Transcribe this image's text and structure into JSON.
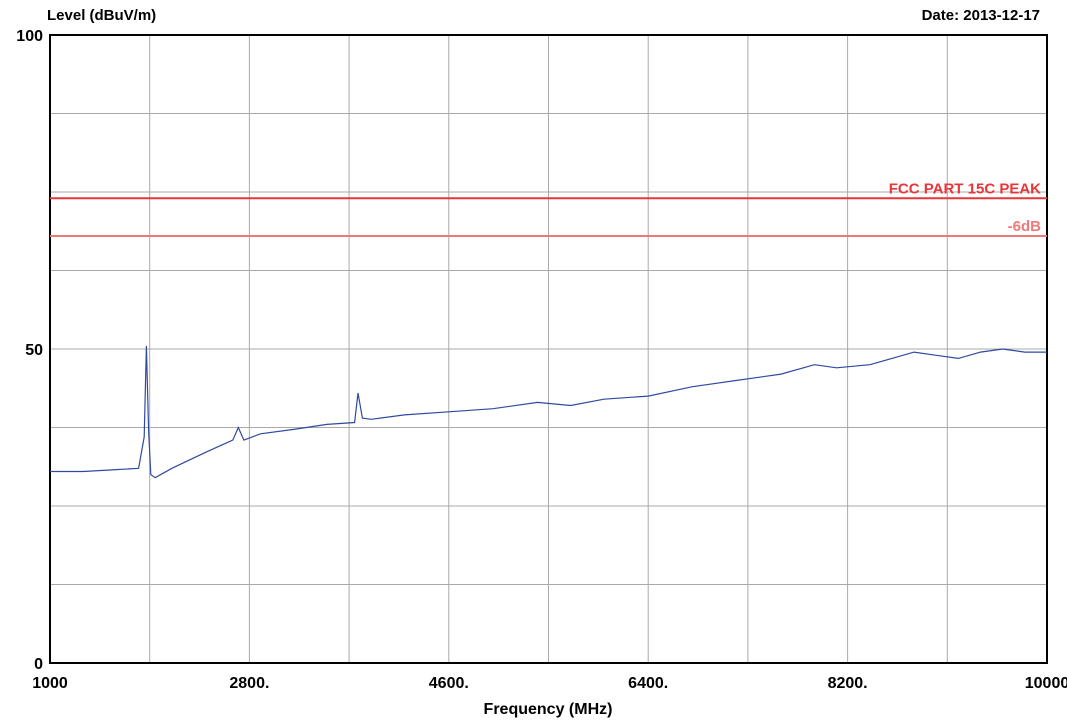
{
  "header": {
    "ylabel": "Level (dBuV/m)",
    "date": "Date: 2013-12-17"
  },
  "colors": {
    "limit_line": "#e8373a",
    "margin_line": "#ee7777",
    "margin_text": "#f07a7a",
    "trace": "#2f4aa0",
    "grid": "#a9a9a9"
  },
  "chart_data": {
    "type": "line",
    "xlabel": "Frequency (MHz)",
    "ylabel": "Level (dBuV/m)",
    "xlim": [
      1000,
      10000
    ],
    "ylim": [
      0,
      100
    ],
    "x_ticks": [
      1000,
      2800,
      4600,
      6400,
      8200,
      10000
    ],
    "x_tick_labels": [
      "1000",
      "2800.",
      "4600.",
      "6400.",
      "8200.",
      "10000"
    ],
    "y_tick_labels": [
      "0",
      "50",
      "100"
    ],
    "y_ticks": [
      0,
      50,
      100
    ],
    "grid": true,
    "limits": [
      {
        "name": "FCC PART 15C  PEAK",
        "value": 74
      },
      {
        "name": "-6dB",
        "value": 68
      }
    ],
    "series": [
      {
        "name": "",
        "x": [
          1000,
          1300,
          1600,
          1800,
          1850,
          1870,
          1890,
          1910,
          1950,
          2100,
          2400,
          2650,
          2700,
          2750,
          2900,
          3200,
          3500,
          3750,
          3780,
          3820,
          3900,
          4200,
          4600,
          5000,
          5400,
          5700,
          6000,
          6400,
          6800,
          7200,
          7600,
          7900,
          8100,
          8400,
          8600,
          8800,
          9000,
          9200,
          9400,
          9600,
          9800,
          10000
        ],
        "y": [
          30.5,
          30.5,
          30.8,
          31.0,
          36.0,
          50.5,
          37.0,
          30.0,
          29.5,
          31.0,
          33.5,
          35.5,
          37.5,
          35.5,
          36.5,
          37.2,
          38.0,
          38.3,
          43.0,
          39.0,
          38.8,
          39.5,
          40.0,
          40.5,
          41.5,
          41.0,
          42.0,
          42.5,
          44.0,
          45.0,
          46.0,
          47.5,
          47.0,
          47.5,
          48.5,
          49.5,
          49.0,
          48.5,
          49.5,
          50.0,
          49.5,
          49.5
        ]
      }
    ]
  }
}
